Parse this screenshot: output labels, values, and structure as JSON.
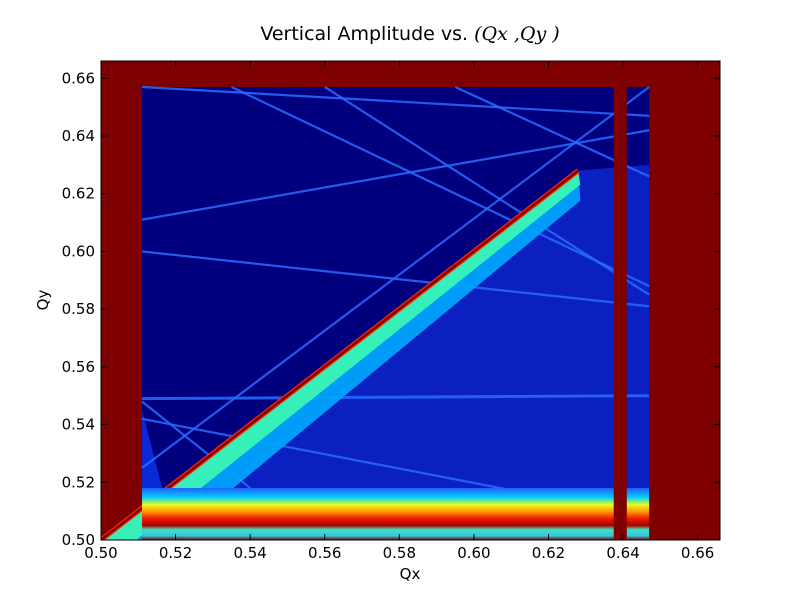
{
  "chart_data": {
    "type": "heatmap",
    "title": {
      "prefix": "Vertical Amplitude vs. ",
      "math": "(Qx ,Qy )"
    },
    "xlabel": "Qx",
    "ylabel": "Qy",
    "xlim": [
      0.5,
      0.666
    ],
    "ylim": [
      0.5,
      0.666
    ],
    "xticks": [
      0.5,
      0.52,
      0.54,
      0.56,
      0.58,
      0.6,
      0.62,
      0.64,
      0.66
    ],
    "yticks": [
      0.5,
      0.52,
      0.54,
      0.56,
      0.58,
      0.6,
      0.62,
      0.64,
      0.66
    ],
    "xtick_labels": [
      "0.50",
      "0.52",
      "0.54",
      "0.56",
      "0.58",
      "0.60",
      "0.62",
      "0.64",
      "0.66"
    ],
    "ytick_labels": [
      "0.50",
      "0.52",
      "0.54",
      "0.56",
      "0.58",
      "0.60",
      "0.62",
      "0.64",
      "0.66"
    ],
    "colormap": "jet",
    "colors": {
      "background": "#00007f",
      "saturated": "#7f0000",
      "field": "#0a2ad8"
    },
    "scan_region": {
      "x": [
        0.511,
        0.647
      ],
      "y": [
        0.5,
        0.657
      ]
    },
    "diagonal_resonance": {
      "x": [
        0.5,
        0.628
      ],
      "y": [
        0.5,
        0.628
      ]
    },
    "vertical_band": {
      "x": [
        0.6375,
        0.641
      ],
      "y": [
        0.5,
        0.657
      ]
    },
    "bottom_band": {
      "y": [
        0.5,
        0.518
      ]
    },
    "resonance_lines": [
      {
        "x": [
          0.511,
          0.647
        ],
        "y": [
          0.549,
          0.55
        ]
      },
      {
        "x": [
          0.511,
          0.647
        ],
        "y": [
          0.611,
          0.642
        ]
      },
      {
        "x": [
          0.511,
          0.647
        ],
        "y": [
          0.6,
          0.581
        ]
      },
      {
        "x": [
          0.511,
          0.647
        ],
        "y": [
          0.525,
          0.657
        ]
      },
      {
        "x": [
          0.535,
          0.647
        ],
        "y": [
          0.657,
          0.588
        ]
      },
      {
        "x": [
          0.511,
          0.647
        ],
        "y": [
          0.542,
          0.508
        ]
      },
      {
        "x": [
          0.511,
          0.647
        ],
        "y": [
          0.657,
          0.647
        ]
      },
      {
        "x": [
          0.595,
          0.647
        ],
        "y": [
          0.657,
          0.626
        ]
      },
      {
        "x": [
          0.511,
          0.54
        ],
        "y": [
          0.548,
          0.518
        ]
      },
      {
        "x": [
          0.56,
          0.647
        ],
        "y": [
          0.657,
          0.585
        ]
      }
    ]
  }
}
